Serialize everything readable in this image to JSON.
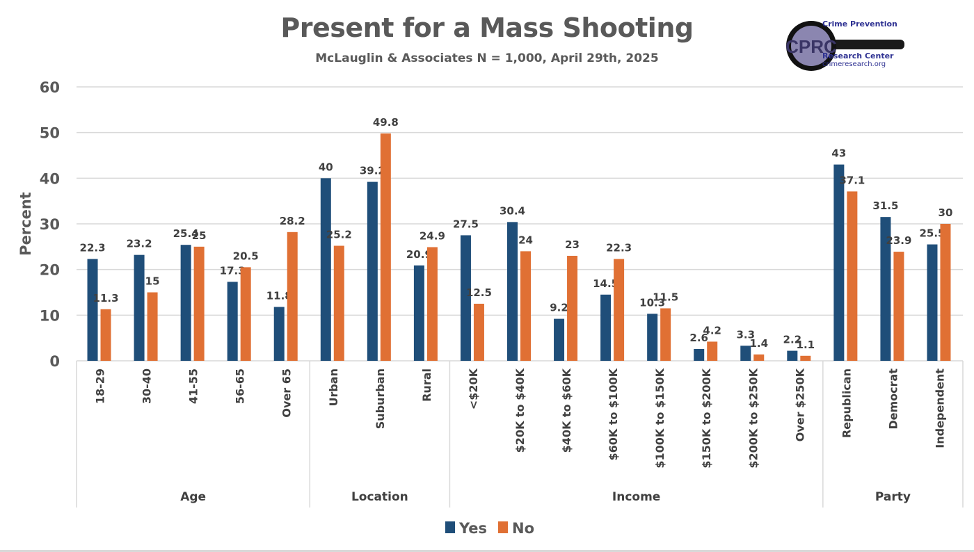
{
  "logo": {
    "mark": "CPRC",
    "line1": "Crime Prevention",
    "line2": "Research Center",
    "line3": "crimeresearch.org",
    "icon": "magnifying-glass-icon"
  },
  "colors": {
    "yes": "#1f4e79",
    "no": "#e07034",
    "text": "#404040",
    "grid": "#d9d9d9"
  },
  "chart_data": {
    "type": "bar",
    "title": "Present for a Mass Shooting",
    "subtitle": "McLauglin & Associates N = 1,000, April 29th, 2025",
    "xlabel": "",
    "ylabel": "Percent",
    "ylim": [
      0,
      60
    ],
    "yticks": [
      "0",
      "10",
      "20",
      "30",
      "40",
      "50",
      "60"
    ],
    "grid": true,
    "legend_position": "bottom-center",
    "groups": [
      {
        "label": "Age",
        "count": 5
      },
      {
        "label": "Location",
        "count": 3
      },
      {
        "label": "Income",
        "count": 8
      },
      {
        "label": "Party",
        "count": 3
      }
    ],
    "categories": [
      "18-29",
      "30-40",
      "41-55",
      "56-65",
      "Over 65",
      "Urban",
      "Suburban",
      "Rural",
      "<$20K",
      "$20K to $40K",
      "$40K to $60K",
      "$60K to $100K",
      "$100K to $150K",
      "$150K to $200K",
      "$200K to $250K",
      "Over $250K",
      "Republican",
      "Democrat",
      "Independent"
    ],
    "series": [
      {
        "name": "Yes",
        "values": [
          22.3,
          23.2,
          25.4,
          17.3,
          11.8,
          40,
          39.2,
          20.9,
          27.5,
          30.4,
          9.2,
          14.5,
          10.3,
          2.6,
          3.3,
          2.2,
          43,
          31.5,
          25.5
        ],
        "labels": [
          "22.3",
          "23.2",
          "25.4",
          "17.3",
          "11.8",
          "40",
          "39.2",
          "20.9",
          "27.5",
          "30.4",
          "9.2",
          "14.5",
          "10.3",
          "2.6",
          "3.3",
          "2.2",
          "43",
          "31.5",
          "25.5"
        ]
      },
      {
        "name": "No",
        "values": [
          11.3,
          15,
          25,
          20.5,
          28.2,
          25.2,
          49.8,
          24.9,
          12.5,
          24,
          23,
          22.3,
          11.5,
          4.2,
          1.4,
          1.1,
          37.1,
          23.9,
          30
        ],
        "labels": [
          "11.3",
          "15",
          "25",
          "20.5",
          "28.2",
          "25.2",
          "49.8",
          "24.9",
          "12.5",
          "24",
          "23",
          "22.3",
          "11.5",
          "4.2",
          "1.4",
          "1.1",
          "37.1",
          "23.9",
          "30"
        ]
      }
    ]
  }
}
